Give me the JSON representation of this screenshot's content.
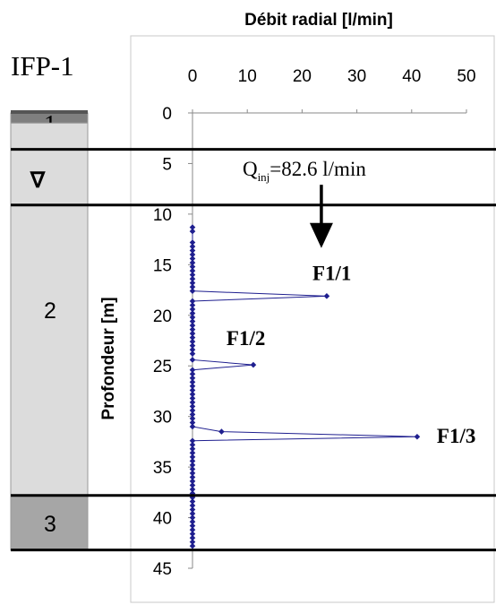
{
  "well": {
    "name": "IFP-1",
    "layers": [
      {
        "label": "1",
        "top": 0,
        "bottom": 1,
        "color": "#7f7f7f"
      },
      {
        "label": "2",
        "top": 1,
        "bottom": 37.8,
        "color": "#dcdcdc"
      },
      {
        "label": "3",
        "top": 37.8,
        "bottom": 43.2,
        "color": "#a6a6a6"
      }
    ],
    "water_table_symbol": "∇",
    "water_table_depth": 6.3
  },
  "boundaries": [
    3.6,
    9.1,
    37.8,
    43.2
  ],
  "chart_data": {
    "type": "scatter",
    "title": "Débit radial [l/min]",
    "ylabel": "Profondeur [m]",
    "xlim": [
      0,
      50
    ],
    "ylim": [
      0,
      45
    ],
    "y_inverted": true,
    "x_axis_position": "top",
    "xticks": [
      "0",
      "10",
      "20",
      "30",
      "40",
      "50"
    ],
    "yticks": [
      "0",
      "5",
      "10",
      "15",
      "20",
      "25",
      "30",
      "35",
      "40",
      "45"
    ],
    "series": [
      {
        "color": "#1f1f8f",
        "points": [
          [
            0,
            11.3
          ],
          [
            0,
            11.7
          ],
          [
            0,
            12.8
          ],
          [
            0,
            13.2
          ],
          [
            0,
            13.6
          ],
          [
            0,
            14.0
          ],
          [
            0,
            14.4
          ],
          [
            0,
            14.8
          ],
          [
            0,
            15.2
          ],
          [
            0,
            15.6
          ],
          [
            0,
            16.0
          ],
          [
            0,
            16.4
          ],
          [
            0,
            16.8
          ],
          [
            0,
            17.2
          ],
          [
            0,
            17.6
          ],
          [
            24.5,
            18.1
          ],
          [
            0,
            18.6
          ],
          [
            0,
            19.0
          ],
          [
            0,
            19.4
          ],
          [
            0,
            19.8
          ],
          [
            0,
            20.2
          ],
          [
            0,
            20.6
          ],
          [
            0,
            21.0
          ],
          [
            0,
            21.4
          ],
          [
            0,
            21.8
          ],
          [
            0,
            22.2
          ],
          [
            0,
            22.6
          ],
          [
            0,
            23.0
          ],
          [
            0,
            23.4
          ],
          [
            0,
            23.8
          ],
          [
            0,
            24.4
          ],
          [
            11.1,
            24.9
          ],
          [
            0,
            25.4
          ],
          [
            0,
            25.8
          ],
          [
            0,
            26.2
          ],
          [
            0,
            26.6
          ],
          [
            0,
            27.0
          ],
          [
            0,
            27.4
          ],
          [
            0,
            27.8
          ],
          [
            0,
            28.2
          ],
          [
            0,
            28.6
          ],
          [
            0,
            29.0
          ],
          [
            0,
            29.4
          ],
          [
            0,
            29.8
          ],
          [
            0,
            30.2
          ],
          [
            0,
            30.6
          ],
          [
            0,
            31.0
          ],
          [
            5.3,
            31.5
          ],
          [
            41.0,
            32.0
          ],
          [
            0,
            32.4
          ],
          [
            0,
            32.8
          ],
          [
            0,
            33.2
          ],
          [
            0,
            33.6
          ],
          [
            0,
            34.0
          ],
          [
            0,
            34.4
          ],
          [
            0,
            34.8
          ],
          [
            0,
            35.2
          ],
          [
            0,
            35.6
          ],
          [
            0,
            36.0
          ],
          [
            0,
            36.4
          ],
          [
            0,
            36.8
          ],
          [
            0,
            37.2
          ],
          [
            0,
            37.6
          ],
          [
            0,
            38.0
          ],
          [
            0,
            38.4
          ],
          [
            0,
            38.8
          ],
          [
            0,
            39.2
          ],
          [
            0,
            39.6
          ],
          [
            0,
            40.0
          ],
          [
            0,
            40.4
          ],
          [
            0,
            40.8
          ],
          [
            0,
            41.2
          ],
          [
            0,
            41.6
          ],
          [
            0,
            42.0
          ],
          [
            0,
            42.4
          ],
          [
            0,
            42.8
          ]
        ]
      }
    ],
    "annotations": [
      {
        "text": "F1/1",
        "x": 24.5,
        "y": 18.1
      },
      {
        "text": "F1/2",
        "x": 11.1,
        "y": 24.9
      },
      {
        "text": "F1/3",
        "x": 41.0,
        "y": 32.0
      }
    ],
    "injection": {
      "label_main": "Q",
      "label_sub": "inj",
      "label_rest": "=82.6 l/min",
      "arrow_x": 24.5,
      "arrow_from": 7.1,
      "arrow_to": 13.0
    }
  }
}
